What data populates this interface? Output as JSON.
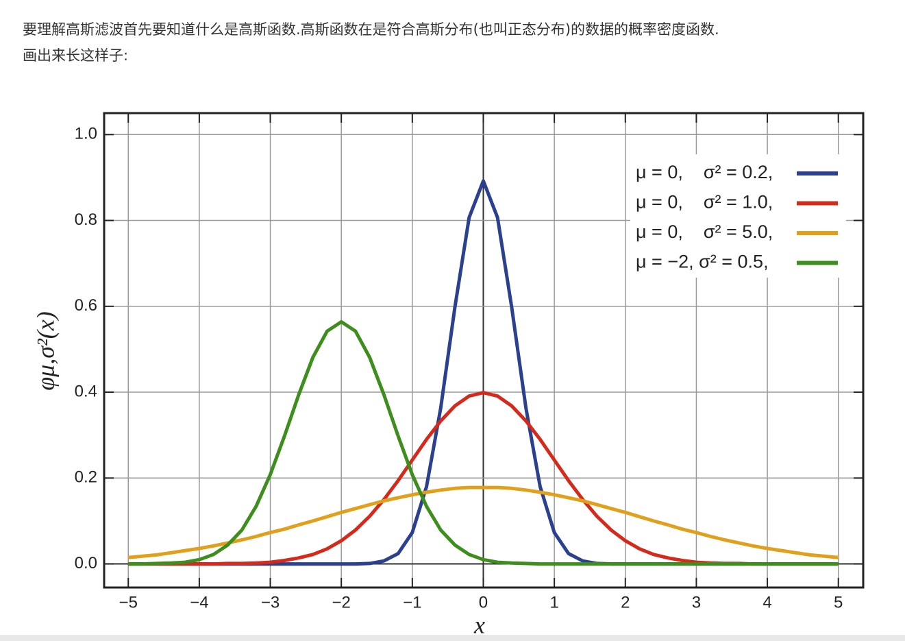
{
  "article": {
    "lines": [
      "要理解高斯滤波首先要知道什么是高斯函数.高斯函数在是符合高斯分布(也叫正态分布)的数据的概率密度函数.",
      "画出来长这样子:"
    ]
  },
  "chart_data": {
    "type": "line",
    "xlabel": "x",
    "ylabel": "φμ,σ²(x)",
    "x": [
      -5,
      -4.8,
      -4.6,
      -4.4,
      -4.2,
      -4,
      -3.8,
      -3.6,
      -3.4,
      -3.2,
      -3,
      -2.8,
      -2.6,
      -2.4,
      -2.2,
      -2,
      -1.8,
      -1.6,
      -1.4,
      -1.2,
      -1,
      -0.8,
      -0.6,
      -0.4,
      -0.2,
      0,
      0.2,
      0.4,
      0.6,
      0.8,
      1,
      1.2,
      1.4,
      1.6,
      1.8,
      2,
      2.2,
      2.4,
      2.6,
      2.8,
      3,
      3.2,
      3.4,
      3.6,
      3.8,
      4,
      4.2,
      4.4,
      4.6,
      4.8,
      5
    ],
    "series": [
      {
        "name": "μ = 0,    σ² = 0.2,",
        "color": "#2b4190",
        "values": [
          0,
          0,
          0,
          0,
          0,
          0,
          0,
          0,
          0,
          0,
          0,
          0,
          0,
          0,
          0,
          0,
          0,
          0.001,
          0.007,
          0.024,
          0.073,
          0.18,
          0.363,
          0.598,
          0.807,
          0.892,
          0.807,
          0.598,
          0.363,
          0.18,
          0.073,
          0.024,
          0.007,
          0.001,
          0,
          0,
          0,
          0,
          0,
          0,
          0,
          0,
          0,
          0,
          0,
          0,
          0,
          0,
          0,
          0,
          0
        ]
      },
      {
        "name": "μ = 0,    σ² = 1.0,",
        "color": "#d42a1c",
        "values": [
          0,
          0,
          0,
          0,
          0,
          0,
          0,
          0.001,
          0.001,
          0.002,
          0.004,
          0.008,
          0.014,
          0.022,
          0.035,
          0.054,
          0.079,
          0.111,
          0.15,
          0.194,
          0.242,
          0.29,
          0.333,
          0.368,
          0.391,
          0.399,
          0.391,
          0.368,
          0.333,
          0.29,
          0.242,
          0.194,
          0.15,
          0.111,
          0.079,
          0.054,
          0.035,
          0.022,
          0.014,
          0.008,
          0.004,
          0.002,
          0.001,
          0.001,
          0,
          0,
          0,
          0,
          0,
          0,
          0
        ]
      },
      {
        "name": "μ = 0,    σ² = 5.0,",
        "color": "#e0a01c",
        "values": [
          0.015,
          0.018,
          0.021,
          0.026,
          0.031,
          0.036,
          0.042,
          0.049,
          0.056,
          0.064,
          0.073,
          0.081,
          0.091,
          0.1,
          0.11,
          0.12,
          0.129,
          0.138,
          0.147,
          0.154,
          0.161,
          0.167,
          0.172,
          0.176,
          0.178,
          0.178,
          0.178,
          0.176,
          0.172,
          0.167,
          0.161,
          0.154,
          0.147,
          0.138,
          0.129,
          0.12,
          0.11,
          0.1,
          0.091,
          0.081,
          0.073,
          0.064,
          0.056,
          0.049,
          0.042,
          0.036,
          0.031,
          0.026,
          0.021,
          0.018,
          0.015
        ]
      },
      {
        "name": "μ = −2, σ² = 0.5,",
        "color": "#3e8e1e",
        "values": [
          0,
          0,
          0.001,
          0.002,
          0.004,
          0.01,
          0.022,
          0.044,
          0.079,
          0.134,
          0.208,
          0.298,
          0.394,
          0.481,
          0.542,
          0.564,
          0.542,
          0.481,
          0.394,
          0.298,
          0.208,
          0.134,
          0.079,
          0.044,
          0.022,
          0.01,
          0.004,
          0.002,
          0.001,
          0,
          0,
          0,
          0,
          0,
          0,
          0,
          0,
          0,
          0,
          0,
          0,
          0,
          0,
          0,
          0,
          0,
          0,
          0,
          0,
          0,
          0
        ]
      }
    ],
    "xlim": [
      -5.34,
      5.35
    ],
    "ylim": [
      -0.055,
      1.05
    ],
    "xticks": [
      {
        "value": -5,
        "label": "−5"
      },
      {
        "value": -4,
        "label": "−4"
      },
      {
        "value": -3,
        "label": "−3"
      },
      {
        "value": -2,
        "label": "−2"
      },
      {
        "value": -1,
        "label": "−1"
      },
      0,
      1,
      2,
      3,
      4,
      5
    ],
    "yticks": [
      {
        "value": 0,
        "label": "0.0"
      },
      0.2,
      0.4,
      0.6,
      0.8,
      {
        "value": 1,
        "label": "1.0"
      }
    ],
    "grid": true,
    "legend": "upper right"
  }
}
